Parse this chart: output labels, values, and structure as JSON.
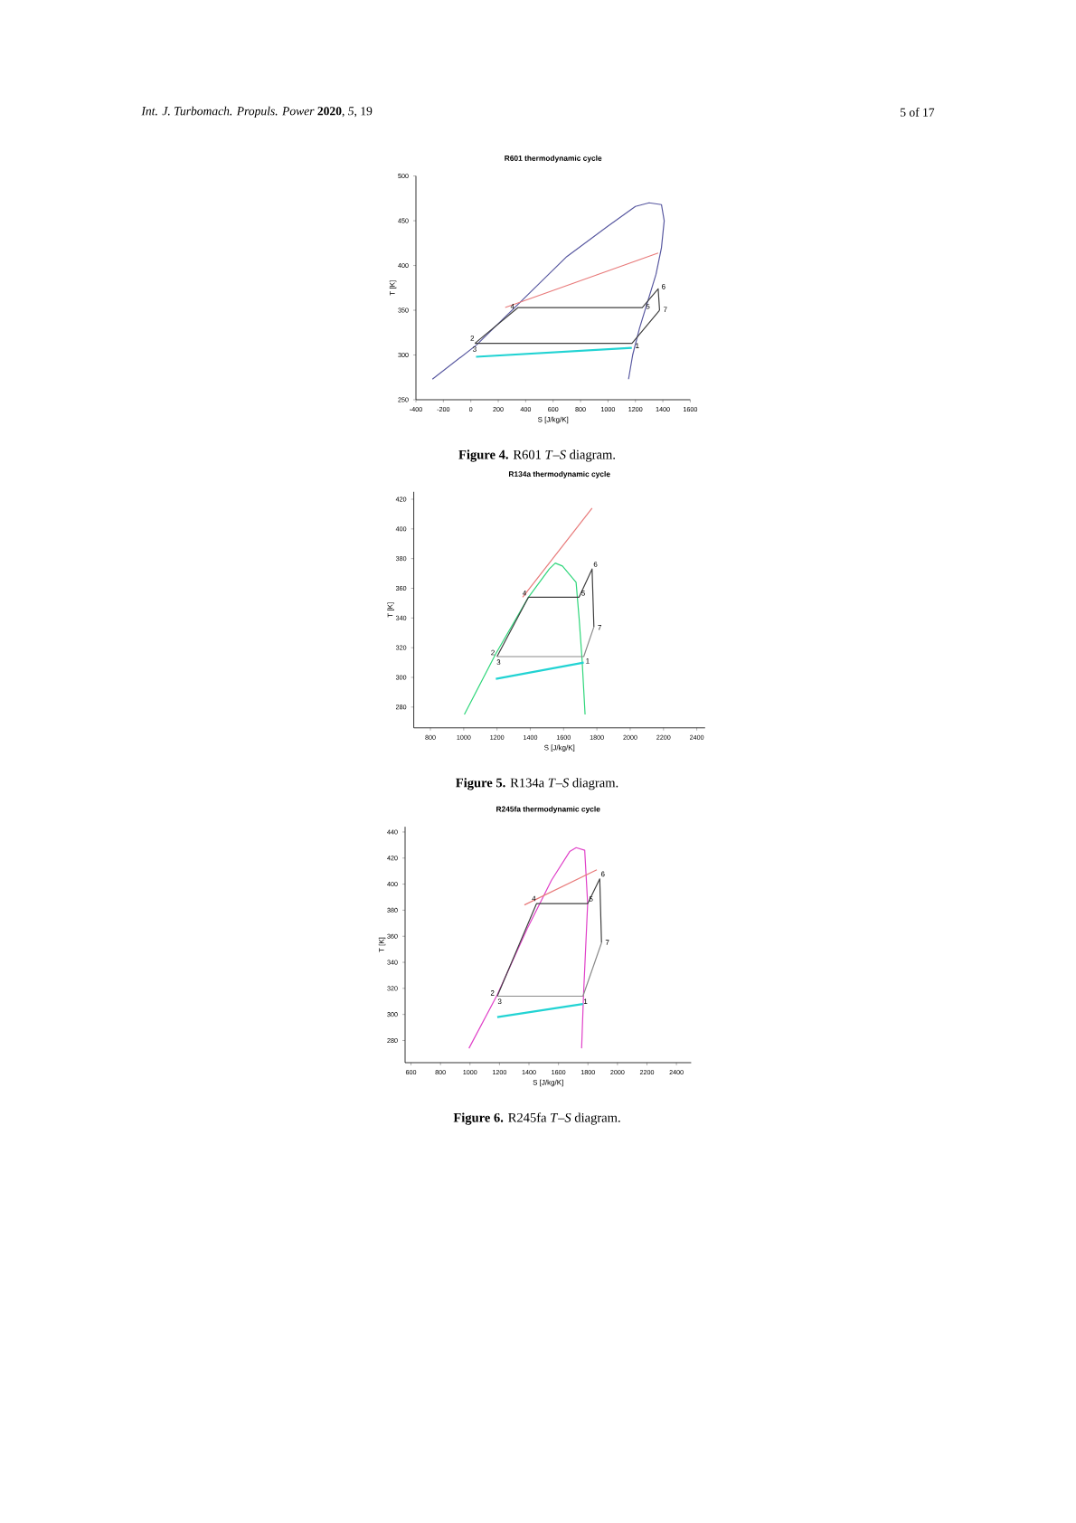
{
  "chart_data": [
    {
      "type": "line",
      "title": "R601 thermodynamic cycle",
      "xlabel": "S [J/kg/K]",
      "ylabel": "T [K]",
      "xlim": [
        -400,
        1600
      ],
      "ylim": [
        250,
        500
      ],
      "xticks": [
        -400,
        -200,
        0,
        200,
        400,
        600,
        800,
        1000,
        1200,
        1400,
        1600
      ],
      "yticks": [
        250,
        300,
        350,
        400,
        450,
        500
      ],
      "series": [
        {
          "color": "#5858a0",
          "x": [
            -280,
            40,
            320,
            700,
            1000,
            1200,
            1300,
            1390,
            1410,
            1390,
            1350,
            1290,
            1230,
            1180,
            1150
          ],
          "values": [
            273,
            311,
            353,
            410,
            444,
            466,
            470,
            468,
            450,
            420,
            390,
            360,
            330,
            300,
            273
          ]
        },
        {
          "color": "#e87a7a",
          "x": [
            251,
            1366
          ],
          "values": [
            353,
            414
          ]
        },
        {
          "color": "#404040",
          "x": [
            30,
            345,
            1250,
            1366,
            1376
          ],
          "values": [
            313,
            353,
            353,
            374,
            350
          ]
        },
        {
          "color": "#404040",
          "x": [
            30,
            1175,
            1376
          ],
          "values": [
            313,
            313,
            350
          ]
        },
        {
          "color": "#22d3d3",
          "x": [
            38,
            1174
          ],
          "values": [
            298,
            308
          ]
        }
      ],
      "annotations": [
        "*Int. J. Turbomach. Propuls. Power* **2020**, *5*, 19",
        "5 of 17",
        "**Figure 4.** R601 *T*–*S* diagram.",
        {
          "text": "3",
          "x": 30,
          "y": 313
        },
        {
          "text": "2",
          "x": 30,
          "y": 313
        },
        {
          "text": "4",
          "x": 345,
          "y": 353
        },
        {
          "text": "5",
          "x": 1250,
          "y": 353
        },
        {
          "text": "6",
          "x": 1366,
          "y": 374
        },
        {
          "text": "7",
          "x": 1376,
          "y": 350
        },
        {
          "text": "1",
          "x": 1175,
          "y": 313
        }
      ]
    },
    {
      "type": "line",
      "title": "R134a thermodynamic cycle",
      "xlabel": "S [J/kg/K]",
      "ylabel": "T [K]",
      "xlim": [
        700,
        2450
      ],
      "ylim": [
        266,
        425
      ],
      "xticks": [
        800,
        1000,
        1200,
        1400,
        1600,
        1800,
        2000,
        2200,
        2400
      ],
      "yticks": [
        280,
        300,
        320,
        340,
        360,
        380,
        400,
        420
      ],
      "series": [
        {
          "color": "#2ed67a",
          "x": [
            1004,
            1193,
            1389,
            1514,
            1550,
            1593,
            1675,
            1693,
            1711,
            1729
          ],
          "values": [
            275,
            316,
            354,
            373,
            377,
            375,
            364,
            340,
            312,
            275
          ]
        },
        {
          "color": "#e87a7a",
          "x": [
            1354,
            1771
          ],
          "values": [
            354,
            414
          ]
        },
        {
          "color": "#404040",
          "x": [
            1200,
            1389,
            1693,
            1771,
            1782
          ],
          "values": [
            314,
            354,
            354,
            373,
            334
          ]
        },
        {
          "color": "#8a8a8a",
          "x": [
            1200,
            1721,
            1782
          ],
          "values": [
            314,
            314,
            334
          ]
        },
        {
          "color": "#22d3d3",
          "x": [
            1193,
            1721
          ],
          "values": [
            299,
            310
          ]
        }
      ],
      "annotations": [
        "**Figure 5.** R134a *T*–*S* diagram.",
        {
          "text": "3",
          "x": 1200,
          "y": 314
        },
        {
          "text": "2",
          "x": 1200,
          "y": 314
        },
        {
          "text": "4",
          "x": 1389,
          "y": 354
        },
        {
          "text": "5",
          "x": 1693,
          "y": 354
        },
        {
          "text": "6",
          "x": 1771,
          "y": 373
        },
        {
          "text": "7",
          "x": 1782,
          "y": 334
        },
        {
          "text": "1",
          "x": 1721,
          "y": 314
        }
      ]
    },
    {
      "type": "line",
      "title": "R245fa thermodynamic cycle",
      "xlabel": "S [J/kg/K]",
      "ylabel": "T [K]",
      "xlim": [
        560,
        2500
      ],
      "ylim": [
        263,
        444
      ],
      "xticks": [
        600,
        800,
        1000,
        1200,
        1400,
        1600,
        1800,
        2000,
        2200,
        2400
      ],
      "yticks": [
        280,
        300,
        320,
        340,
        360,
        380,
        400,
        420,
        440
      ],
      "series": [
        {
          "color": "#e040c8",
          "x": [
            993,
            1185,
            1389,
            1553,
            1676,
            1720,
            1778,
            1798,
            1770,
            1757
          ],
          "values": [
            274,
            315,
            366,
            403,
            425,
            428,
            426,
            385,
            315,
            274
          ]
        },
        {
          "color": "#e87a7a",
          "x": [
            1369,
            1860
          ],
          "values": [
            384,
            411
          ]
        },
        {
          "color": "#404040",
          "x": [
            1185,
            1451,
            1798,
            1880,
            1892
          ],
          "values": [
            314,
            385,
            385,
            404,
            355
          ]
        },
        {
          "color": "#8a8a8a",
          "x": [
            1185,
            1766,
            1892
          ],
          "values": [
            314,
            314,
            355
          ]
        },
        {
          "color": "#22d3d3",
          "x": [
            1185,
            1766
          ],
          "values": [
            298,
            308
          ]
        }
      ],
      "annotations": [
        "**Figure 6.** R245fa *T*–*S* diagram.",
        {
          "text": "3",
          "x": 1185,
          "y": 314
        },
        {
          "text": "2",
          "x": 1185,
          "y": 314
        },
        {
          "text": "4",
          "x": 1451,
          "y": 385
        },
        {
          "text": "5",
          "x": 1798,
          "y": 385
        },
        {
          "text": "6",
          "x": 1880,
          "y": 404
        },
        {
          "text": "7",
          "x": 1892,
          "y": 355
        },
        {
          "text": "1",
          "x": 1766,
          "y": 314
        }
      ]
    }
  ]
}
